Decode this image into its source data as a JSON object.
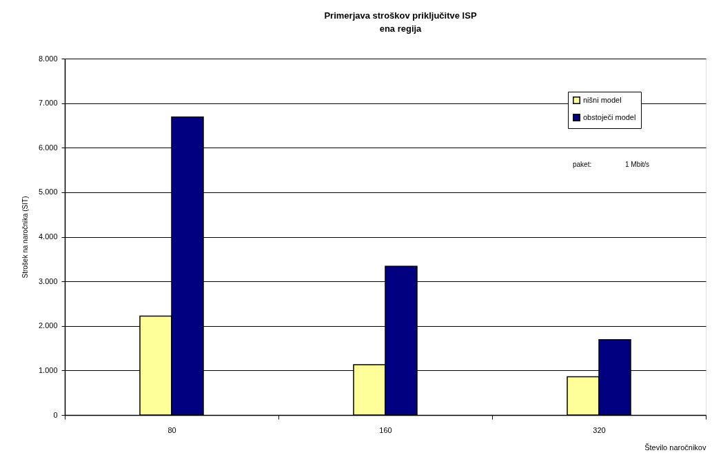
{
  "chart_data": {
    "type": "bar",
    "title": "Primerjava stroškov priključitve ISP",
    "subtitle": "ena regija",
    "xlabel": "Število naročnikov",
    "ylabel": "Strošek na naročnika (SIT)",
    "categories": [
      "80",
      "160",
      "320"
    ],
    "series": [
      {
        "name": "nišni model",
        "color": "#ffff99",
        "values": [
          2220,
          1130,
          860
        ]
      },
      {
        "name": "obstoječi model",
        "color": "#000080",
        "values": [
          6690,
          3340,
          1690
        ]
      }
    ],
    "ylim": [
      0,
      8000
    ],
    "yticks": [
      0,
      {
        "value": 1000,
        "label": "1.000"
      },
      {
        "value": 2000,
        "label": "2.000"
      },
      {
        "value": 3000,
        "label": "3.000"
      },
      {
        "value": 4000,
        "label": "4.000"
      },
      {
        "value": 5000,
        "label": "5.000"
      },
      {
        "value": 6000,
        "label": "6.000"
      },
      {
        "value": 7000,
        "label": "7.000"
      },
      {
        "value": 8000,
        "label": "8.000"
      }
    ],
    "grid": "y",
    "legend": "top right",
    "annotations": [
      "paket:",
      "1 Mbit/s"
    ]
  }
}
